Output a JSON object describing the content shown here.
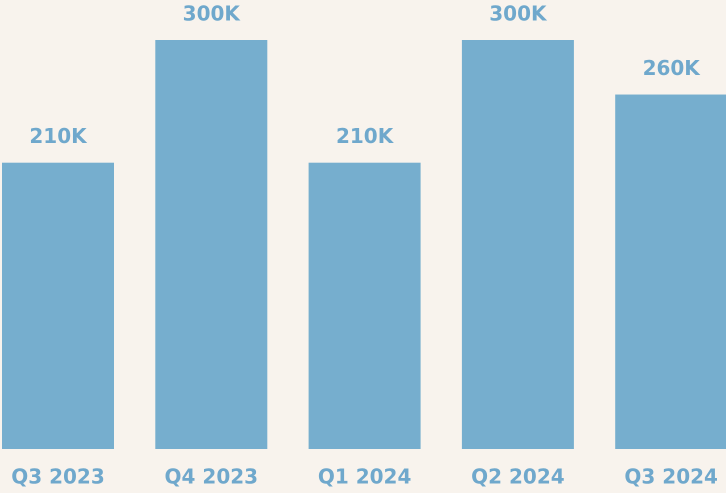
{
  "chart_data": {
    "type": "bar",
    "categories": [
      "Q3 2023",
      "Q4 2023",
      "Q1 2024",
      "Q2 2024",
      "Q3 2024"
    ],
    "values": [
      210000,
      300000,
      210000,
      300000,
      260000
    ],
    "value_labels": [
      "210K",
      "300K",
      "210K",
      "300K",
      "260K"
    ],
    "color": "#76aece"
  }
}
